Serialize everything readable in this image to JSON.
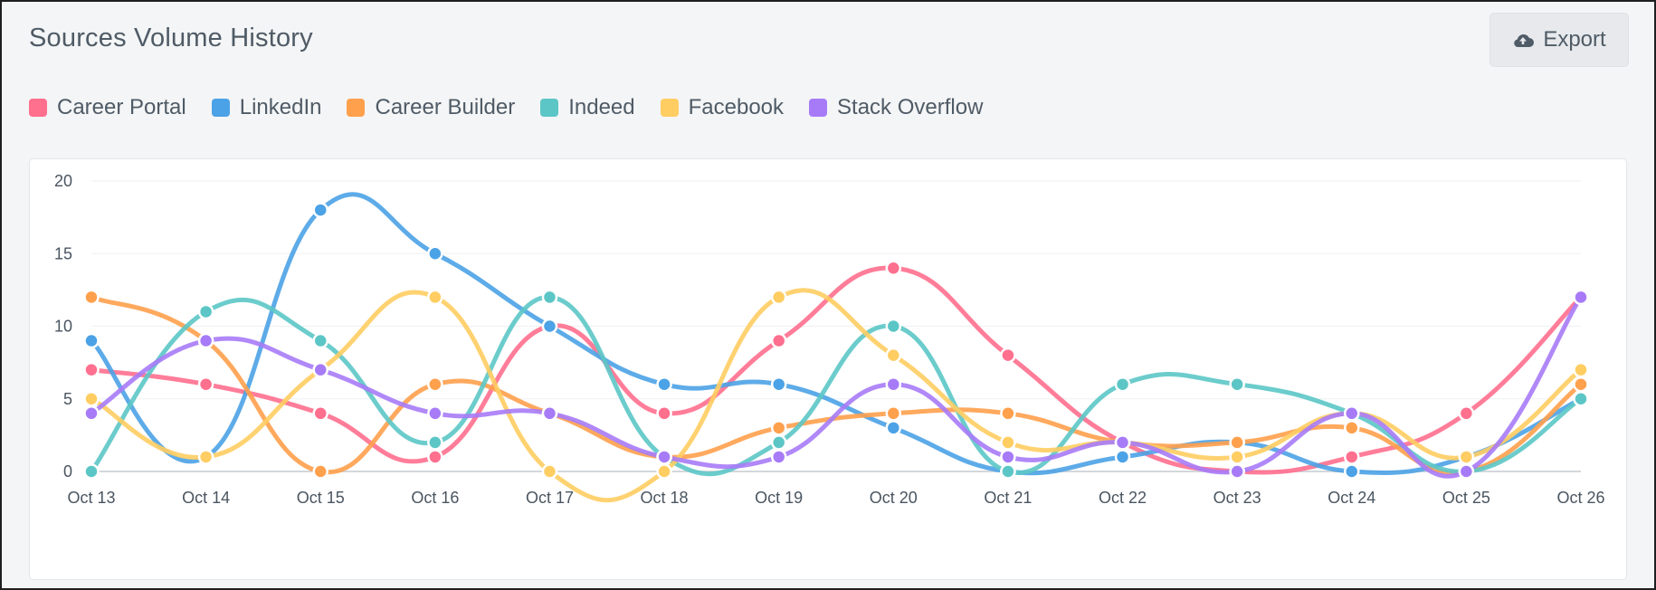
{
  "title": "Sources Volume History",
  "export_label": "Export",
  "export_icon": "cloud-upload-icon",
  "chart_data": {
    "type": "line",
    "categories": [
      "Oct 13",
      "Oct 14",
      "Oct 15",
      "Oct 16",
      "Oct 17",
      "Oct 18",
      "Oct 19",
      "Oct 20",
      "Oct 21",
      "Oct 22",
      "Oct 23",
      "Oct 24",
      "Oct 25",
      "Oct 26"
    ],
    "ylim": [
      0,
      20
    ],
    "yticks": [
      0,
      5,
      10,
      15,
      20
    ],
    "grid": true,
    "legend_position": "top-left",
    "series": [
      {
        "name": "Career Portal",
        "color": "#ff6f8e",
        "values": [
          7,
          6,
          4,
          1,
          10,
          4,
          9,
          14,
          8,
          2,
          0,
          1,
          4,
          12
        ]
      },
      {
        "name": "LinkedIn",
        "color": "#4ba2e6",
        "values": [
          9,
          1,
          18,
          15,
          10,
          6,
          6,
          3,
          0,
          1,
          2,
          0,
          1,
          5
        ]
      },
      {
        "name": "Career Builder",
        "color": "#ffa04d",
        "values": [
          12,
          9,
          0,
          6,
          4,
          1,
          3,
          4,
          4,
          2,
          2,
          3,
          0,
          6
        ]
      },
      {
        "name": "Indeed",
        "color": "#5cc6c6",
        "values": [
          0,
          11,
          9,
          2,
          12,
          1,
          2,
          10,
          0,
          6,
          6,
          4,
          0,
          5
        ]
      },
      {
        "name": "Facebook",
        "color": "#ffcd62",
        "values": [
          5,
          1,
          7,
          12,
          0,
          0,
          12,
          8,
          2,
          2,
          1,
          4,
          1,
          7
        ]
      },
      {
        "name": "Stack Overflow",
        "color": "#a77bf7",
        "values": [
          4,
          9,
          7,
          4,
          4,
          1,
          1,
          6,
          1,
          2,
          0,
          4,
          0,
          12
        ]
      }
    ]
  }
}
